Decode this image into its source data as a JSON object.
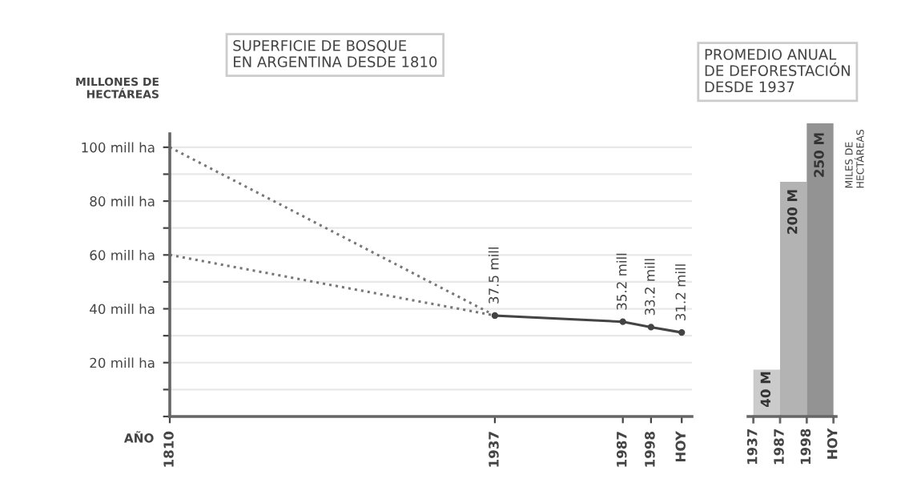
{
  "chart_data": [
    {
      "type": "line",
      "title": "SUPERFICIE DE BOSQUE\nEN ARGENTINA DESDE 1810",
      "ylabel": "MILLONES DE\nHECTÁREAS",
      "xlabel": "AÑO",
      "series": [
        {
          "x": [
            1810,
            1937
          ],
          "values": [
            100,
            37.5
          ],
          "color": "#777777",
          "line_style": "dotted"
        },
        {
          "x": [
            1810,
            1937
          ],
          "values": [
            60,
            37.5
          ],
          "color": "#777777",
          "line_style": "dotted"
        },
        {
          "x": [
            1937,
            1987,
            1998,
            2010
          ],
          "values": [
            37.5,
            35.2,
            33.2,
            31.2
          ],
          "color": "#444444",
          "line_style": "solid",
          "marker": "circle",
          "value_labels": [
            "37.5 mill",
            "35.2 mill",
            "33.2 mill",
            "31.2 mill"
          ]
        }
      ],
      "xlim": [
        1810,
        2014
      ],
      "xticks": [
        1810,
        1937,
        1987,
        1998,
        {
          "value": 2010,
          "label": "HOY"
        }
      ],
      "ylim": [
        0,
        105
      ],
      "yticks": [
        {
          "value": 0,
          "label": null
        },
        {
          "value": 10,
          "label": null
        },
        {
          "value": 20,
          "label": "20 mill ha"
        },
        {
          "value": 30,
          "label": null
        },
        {
          "value": 40,
          "label": "40 mill ha"
        },
        {
          "value": 50,
          "label": null
        },
        {
          "value": 60,
          "label": "60 mill ha"
        },
        {
          "value": 70,
          "label": null
        },
        {
          "value": 80,
          "label": "80 mill ha"
        },
        {
          "value": 90,
          "label": null
        },
        {
          "value": 100,
          "label": "100 mill ha"
        }
      ],
      "grid": "y"
    },
    {
      "type": "bar",
      "title": "PROMEDIO ANUAL\nDE DEFORESTACIÓN\nDESDE 1937",
      "ylabel": "MILES DE\nHECTÁREAS",
      "categories": [
        null,
        null,
        null
      ],
      "values": [
        40,
        200,
        250
      ],
      "colors": [
        "#cbcbcb",
        "#b3b3b3",
        "#939393"
      ],
      "value_labels": [
        "40 M",
        "200 M",
        "250 M"
      ],
      "annotations": [
        "1937",
        "1987",
        "1998",
        "HOY"
      ]
    }
  ]
}
